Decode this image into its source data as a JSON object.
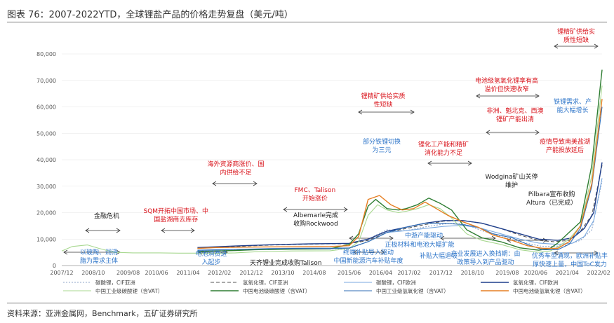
{
  "figure": {
    "title": "图表 76：2007-2022YTD，全球锂盐产品的价格走势复盘（美元/吨）",
    "source": "资料来源：亚洲金属网，Benchmark，五矿证券研究所"
  },
  "chart_data": {
    "type": "line",
    "title": "2007-2022YTD，全球锂盐产品的价格走势复盘（美元/吨）",
    "xlabel": "",
    "ylabel": "美元/吨",
    "ylim": [
      0,
      80000
    ],
    "yticks": [
      0,
      10000,
      20000,
      30000,
      40000,
      50000,
      60000,
      70000,
      80000
    ],
    "ytick_labels": [
      "0",
      "10,000",
      "20,000",
      "30,000",
      "40,000",
      "50,000",
      "60,000",
      "70,000",
      "80,000"
    ],
    "x_range": [
      2007.92,
      2022.17
    ],
    "xticks": [
      2007.92,
      2008.75,
      2009.67,
      2010.42,
      2011.25,
      2012.08,
      2012.92,
      2013.75,
      2014.58,
      2015.5,
      2016.33,
      2017.08,
      2017.92,
      2018.75,
      2019.67,
      2020.42,
      2021.25,
      2022.08
    ],
    "xtick_labels": [
      "2007/12",
      "2008/10",
      "2009/08",
      "2010/06",
      "2011/04",
      "2012/02",
      "2012/12",
      "2013/10",
      "2014/08",
      "2015/06",
      "2016/04",
      "2017/02",
      "2017/12",
      "2018/10",
      "2019/08",
      "2020/06",
      "2021/04",
      "2022/02"
    ],
    "series": [
      {
        "name": "碳酸锂，CIF亚洲",
        "color": "#8fa4c8",
        "dash": "2,2",
        "width": 1.1,
        "x": [
          2011.5,
          2012.5,
          2013.5,
          2014.5,
          2015.0,
          2015.5,
          2015.9,
          2016.2,
          2016.5,
          2016.8,
          2017.0,
          2017.5,
          2018.0,
          2018.3,
          2018.6,
          2019.0,
          2019.5,
          2020.0,
          2020.4,
          2020.6,
          2020.9,
          2021.2,
          2021.6,
          2021.9,
          2022.17
        ],
        "values": [
          5200,
          5800,
          6200,
          6400,
          6300,
          6400,
          8500,
          11500,
          13500,
          13200,
          13200,
          14600,
          15700,
          16000,
          15400,
          13200,
          11000,
          9000,
          7800,
          7200,
          7200,
          7600,
          9500,
          13500,
          32000
        ]
      },
      {
        "name": "氢氧化锂，CIF亚洲",
        "color": "#555555",
        "dash": "5,3",
        "width": 1.1,
        "x": [
          2011.5,
          2012.5,
          2013.5,
          2014.5,
          2015.0,
          2015.5,
          2016.0,
          2016.5,
          2017.0,
          2017.5,
          2018.0,
          2018.5,
          2019.0,
          2019.5,
          2020.0,
          2020.5,
          2020.9,
          2021.3,
          2021.6,
          2021.9,
          2022.17
        ],
        "values": [
          6500,
          7200,
          7800,
          8100,
          8200,
          8200,
          9500,
          12500,
          14000,
          15500,
          16800,
          17000,
          16000,
          14000,
          11500,
          9500,
          9000,
          9500,
          13000,
          19000,
          38000
        ]
      },
      {
        "name": "碳酸锂，CIF欧洲",
        "color": "#7aa9e0",
        "dash": "",
        "width": 1.1,
        "x": [
          2011.5,
          2012.5,
          2013.5,
          2014.5,
          2015.0,
          2015.5,
          2016.0,
          2016.5,
          2017.0,
          2017.5,
          2018.0,
          2018.5,
          2019.0,
          2019.5,
          2020.0,
          2020.5,
          2021.0,
          2021.4,
          2021.7,
          2021.95,
          2022.17
        ],
        "values": [
          5600,
          6100,
          6500,
          6600,
          6600,
          6700,
          9000,
          12500,
          13200,
          14000,
          14800,
          15200,
          14000,
          12000,
          10000,
          8500,
          8000,
          8500,
          11000,
          17000,
          33000
        ]
      },
      {
        "name": "氢氧化锂，CIF欧洲",
        "color": "#1f3f8c",
        "dash": "",
        "width": 1.4,
        "x": [
          2011.5,
          2012.5,
          2013.5,
          2014.5,
          2015.0,
          2015.5,
          2016.0,
          2016.5,
          2017.0,
          2017.5,
          2018.0,
          2018.5,
          2019.0,
          2019.5,
          2020.0,
          2020.5,
          2021.0,
          2021.4,
          2021.7,
          2021.95,
          2022.17
        ],
        "values": [
          6800,
          7400,
          7900,
          8200,
          8300,
          8400,
          10000,
          13000,
          14500,
          16000,
          17000,
          17000,
          16000,
          14000,
          12000,
          10000,
          9500,
          10500,
          14000,
          20000,
          39000
        ]
      },
      {
        "name": "中国工业级碳酸锂（含VAT）",
        "color": "#a8d890",
        "dash": "",
        "width": 1.1,
        "x": [
          2007.92,
          2008.2,
          2008.6,
          2008.9,
          2009.3,
          2009.8,
          2010.5,
          2011.0,
          2011.5,
          2012.0,
          2012.5,
          2013.0,
          2014.0,
          2015.0,
          2015.5,
          2015.75,
          2016.0,
          2016.25,
          2016.5,
          2016.8,
          2017.0,
          2017.3,
          2017.6,
          2017.9,
          2018.2,
          2018.6,
          2019.0,
          2019.5,
          2020.0,
          2020.5,
          2020.8,
          2021.0,
          2021.3,
          2021.6,
          2021.9,
          2022.17
        ],
        "values": [
          5500,
          7200,
          7800,
          6500,
          5000,
          4800,
          4800,
          4700,
          4700,
          4600,
          4800,
          5200,
          5500,
          5600,
          6500,
          9000,
          19000,
          23000,
          21000,
          20000,
          20500,
          21500,
          23000,
          21500,
          18000,
          12000,
          9500,
          8000,
          6000,
          5000,
          5500,
          7000,
          10000,
          15000,
          34000,
          68000
        ]
      },
      {
        "name": "中国电池级碳酸锂（含VAT）",
        "color": "#2e7d32",
        "dash": "",
        "width": 1.4,
        "x": [
          2011.5,
          2012.0,
          2012.5,
          2013.0,
          2014.0,
          2015.0,
          2015.5,
          2015.75,
          2016.0,
          2016.2,
          2016.5,
          2016.8,
          2017.0,
          2017.3,
          2017.6,
          2017.9,
          2018.2,
          2018.6,
          2019.0,
          2019.5,
          2020.0,
          2020.5,
          2020.8,
          2021.0,
          2021.3,
          2021.6,
          2021.9,
          2022.17
        ],
        "values": [
          5300,
          5500,
          5700,
          6000,
          6200,
          6300,
          8000,
          12000,
          22500,
          25000,
          21500,
          21000,
          21500,
          23000,
          25500,
          23500,
          21000,
          13500,
          10500,
          9000,
          6700,
          5800,
          6500,
          8500,
          12500,
          16500,
          38000,
          74000
        ]
      },
      {
        "name": "中国工业级氢氧化锂（含VAT）",
        "color": "#2f6db5",
        "dash": "",
        "width": 1.1,
        "x": [
          2011.5,
          2012.0,
          2013.0,
          2014.0,
          2015.0,
          2015.5,
          2016.0,
          2016.5,
          2017.0,
          2017.5,
          2018.0,
          2018.5,
          2018.9,
          2019.3,
          2019.8,
          2020.2,
          2020.6,
          2021.0,
          2021.3,
          2021.6,
          2021.9,
          2022.17
        ],
        "values": [
          5800,
          6000,
          6200,
          6500,
          6400,
          6600,
          9000,
          12500,
          14500,
          16000,
          16000,
          15500,
          14500,
          12000,
          10500,
          8000,
          6000,
          6000,
          8000,
          14000,
          30000,
          60000
        ]
      },
      {
        "name": "中国电池级氢氧化锂（含VAT）",
        "color": "#e67e22",
        "dash": "",
        "width": 1.4,
        "x": [
          2011.5,
          2012.0,
          2013.0,
          2014.0,
          2015.0,
          2015.5,
          2015.75,
          2016.0,
          2016.3,
          2016.6,
          2016.9,
          2017.2,
          2017.5,
          2017.8,
          2018.1,
          2018.5,
          2018.9,
          2019.3,
          2019.8,
          2020.2,
          2020.6,
          2021.0,
          2021.3,
          2021.6,
          2021.9,
          2022.17
        ],
        "values": [
          6500,
          6800,
          7000,
          7100,
          7200,
          7500,
          11000,
          25000,
          26500,
          23000,
          21000,
          21500,
          24000,
          21500,
          19000,
          16500,
          14500,
          11500,
          9500,
          7500,
          6500,
          6500,
          9000,
          15000,
          31000,
          63000
        ]
      }
    ],
    "legend_position": "bottom"
  },
  "annotations": [
    {
      "text": "锂精矿供给实\n质性短缺",
      "color": "red"
    },
    {
      "text": "电池级氢氧化锂享有高\n溢价但快速收窄",
      "color": "red"
    },
    {
      "text": "铁锂需求、产\n能大幅增长",
      "color": "blue"
    },
    {
      "text": "锂精矿供给实质\n性短缺",
      "color": "red"
    },
    {
      "text": "非洲、魁北克、西澳\n锂矿产能出清",
      "color": "red"
    },
    {
      "text": "部分铁锂切换\n为三元",
      "color": "blue"
    },
    {
      "text": "锂化工产能和精矿\n消化能力不足",
      "color": "red"
    },
    {
      "text": "疫情导致南美盐湖\n产能投放延后",
      "color": "red"
    },
    {
      "text": "海外资源商涨价、国\n内供给不足",
      "color": "red"
    },
    {
      "text": "Wodgina矿山关停\n维护",
      "color": "black"
    },
    {
      "text": "FMC、Talison\n开始涨价",
      "color": "red"
    },
    {
      "text": "Pilbara宣布收购\nAltura（已完成）",
      "color": "black"
    },
    {
      "text": "金融危机",
      "color": "black"
    },
    {
      "text": "SQM开拓中国市场、中\n国盐湖商去库存",
      "color": "red"
    },
    {
      "text": "Albemarle完成\n收购Rockwood",
      "color": "black"
    },
    {
      "text": "中游产能驱动",
      "color": "blue"
    },
    {
      "text": "正极材料和电池大幅扩能",
      "color": "blue"
    },
    {
      "text": "补贴大幅退坡",
      "color": "blue"
    },
    {
      "text": "产业发展进入换挡期：由\n政策导入到产品驱动",
      "color": "blue"
    },
    {
      "text": "以玻陶、润滑\n脂为需求主体",
      "color": "blue"
    },
    {
      "text": "电池消费进\n入起步",
      "color": "blue"
    },
    {
      "text": "终端补贴导入驱动\n中国新能源汽车补贴年度",
      "color": "blue"
    },
    {
      "text": "优秀车型涌现，欧洲补贴丰\n厚快速上量，中国ToC发力",
      "color": "blue"
    },
    {
      "text": "天齐锂业完成收购Talison",
      "color": "black"
    }
  ]
}
